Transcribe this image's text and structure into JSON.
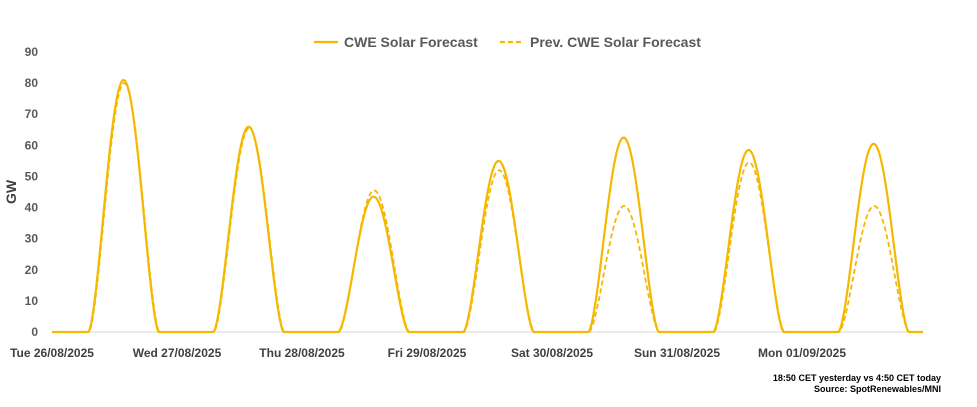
{
  "chart_data": {
    "type": "line",
    "ylabel": "GW",
    "ylim": [
      0,
      90
    ],
    "yticks": [
      0,
      10,
      20,
      30,
      40,
      50,
      60,
      70,
      80,
      90
    ],
    "xticks": [
      "Tue 26/08/2025",
      "Wed 27/08/2025",
      "Thu 28/08/2025",
      "Fri 29/08/2025",
      "Sat 30/08/2025",
      "Sun 31/08/2025",
      "Mon 01/09/2025"
    ],
    "grid": false,
    "legend_position": "top-center",
    "colors": {
      "series": "#F5B800",
      "axis": "#D9D9D9"
    },
    "series": [
      {
        "name": "CWE Solar Forecast",
        "style": "solid",
        "daily_peaks": [
          81,
          66,
          43.5,
          55,
          62.5,
          58.5,
          60.5
        ]
      },
      {
        "name": "Prev. CWE Solar Forecast",
        "style": "dashed",
        "daily_peaks": [
          80,
          65.5,
          45.5,
          52,
          40.5,
          54.5,
          40.5
        ]
      }
    ]
  },
  "footnote": {
    "line1": "18:50 CET yesterday vs  4:50 CET today",
    "line2": "Source: SpotRenewables/MNI"
  }
}
